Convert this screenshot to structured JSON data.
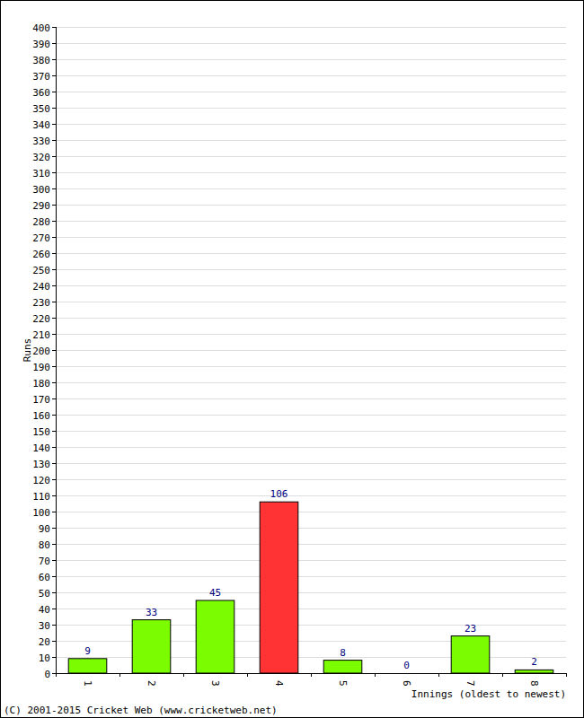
{
  "chart_data": {
    "type": "bar",
    "categories": [
      "1",
      "2",
      "3",
      "4",
      "5",
      "6",
      "7",
      "8"
    ],
    "values": [
      9,
      33,
      45,
      106,
      8,
      0,
      23,
      2
    ],
    "colors": [
      "#7cfc00",
      "#7cfc00",
      "#7cfc00",
      "#ff3333",
      "#7cfc00",
      "#7cfc00",
      "#7cfc00",
      "#7cfc00"
    ],
    "x_label": "Innings (oldest to newest)",
    "y_label": "Runs",
    "annotations": [
      "(C) 2001-2015 Cricket Web (www.cricketweb.net)"
    ],
    "ylim": [
      0,
      400
    ],
    "yticks": [
      0,
      10,
      20,
      30,
      40,
      50,
      60,
      70,
      80,
      90,
      100,
      110,
      120,
      130,
      140,
      150,
      160,
      170,
      180,
      190,
      200,
      210,
      220,
      230,
      240,
      250,
      260,
      270,
      280,
      290,
      300,
      310,
      320,
      330,
      340,
      350,
      360,
      370,
      380,
      390,
      400
    ],
    "grid": true,
    "data_labels": true
  }
}
